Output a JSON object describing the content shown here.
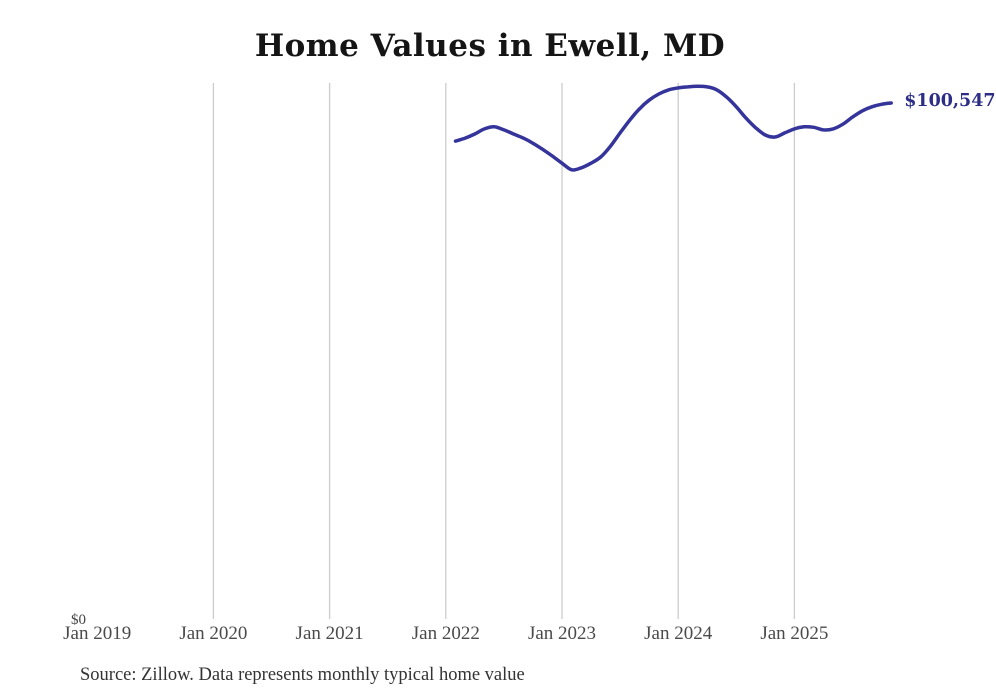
{
  "title": "Home Values in Ewell, MD",
  "source_note": "Source: Zillow. Data represents monthly typical home value",
  "y_zero_label": "$0",
  "latest_value_label": "$100,547",
  "colors": {
    "line": "#34349b",
    "latest_label": "#2d2d86",
    "gridline": "#cccccc",
    "tick_label": "#4a4a4a",
    "title": "#151515",
    "source": "#333333",
    "background": "#ffffff"
  },
  "chart_data": {
    "type": "line",
    "title": "Home Values in Ewell, MD",
    "ylabel": "",
    "xlabel": "",
    "y_axis": {
      "min": 0,
      "max": 104500,
      "zero_label": "$0",
      "gridlines": false
    },
    "x_axis": {
      "ticks": [
        {
          "label": "Jan 2019",
          "months_since_jan_2019": 0,
          "gridline": false
        },
        {
          "label": "Jan 2020",
          "months_since_jan_2019": 12,
          "gridline": true
        },
        {
          "label": "Jan 2021",
          "months_since_jan_2019": 24,
          "gridline": true
        },
        {
          "label": "Jan 2022",
          "months_since_jan_2019": 36,
          "gridline": true
        },
        {
          "label": "Jan 2023",
          "months_since_jan_2019": 48,
          "gridline": true
        },
        {
          "label": "Jan 2024",
          "months_since_jan_2019": 60,
          "gridline": true
        },
        {
          "label": "Jan 2025",
          "months_since_jan_2019": 72,
          "gridline": true
        }
      ]
    },
    "series": [
      {
        "name": "Monthly typical home value",
        "start_month": "2022-02",
        "frequency": "monthly",
        "values": [
          93100,
          93700,
          94500,
          95500,
          95900,
          95300,
          94500,
          93700,
          92700,
          91500,
          90200,
          88800,
          87500,
          87900,
          88800,
          90000,
          92100,
          94700,
          97200,
          99400,
          101100,
          102300,
          103100,
          103500,
          103700,
          103800,
          103700,
          103100,
          101700,
          99800,
          97600,
          95700,
          94300,
          93900,
          94700,
          95500,
          95900,
          95800,
          95300,
          95500,
          96400,
          97800,
          99000,
          99800,
          100300,
          100547
        ]
      }
    ],
    "latest_value": 100547,
    "legend": false
  }
}
